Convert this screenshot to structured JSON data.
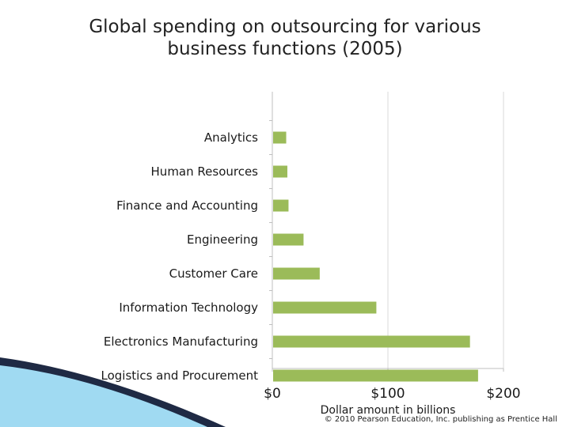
{
  "title_lines": [
    "Global spending on outsourcing for various",
    "business functions (2005)"
  ],
  "copyright": "© 2010 Pearson Education, Inc. publishing as Prentice Hall",
  "colors": {
    "bar": "#9bbb59",
    "grid": "#d9d9d9",
    "axis": "#bfbfbf",
    "text": "#1a1a1a",
    "wave_dark": "#1f2a44",
    "wave_light": "#8fd3f0"
  },
  "chart_data": {
    "type": "bar",
    "orientation": "horizontal",
    "categories": [
      "Analytics",
      "Human Resources",
      "Finance and Accounting",
      "Engineering",
      "Customer Care",
      "Information Technology",
      "Electronics Manufacturing",
      "Logistics and Procurement"
    ],
    "values": [
      12,
      13,
      14,
      27,
      41,
      90,
      171,
      178
    ],
    "xlabel": "Dollar amount in billions",
    "x_ticks": [
      "$0",
      "$100",
      "$200"
    ],
    "x_tick_values": [
      0,
      100,
      200
    ],
    "xlim": [
      0,
      200
    ],
    "grid": true,
    "legend": "none"
  }
}
